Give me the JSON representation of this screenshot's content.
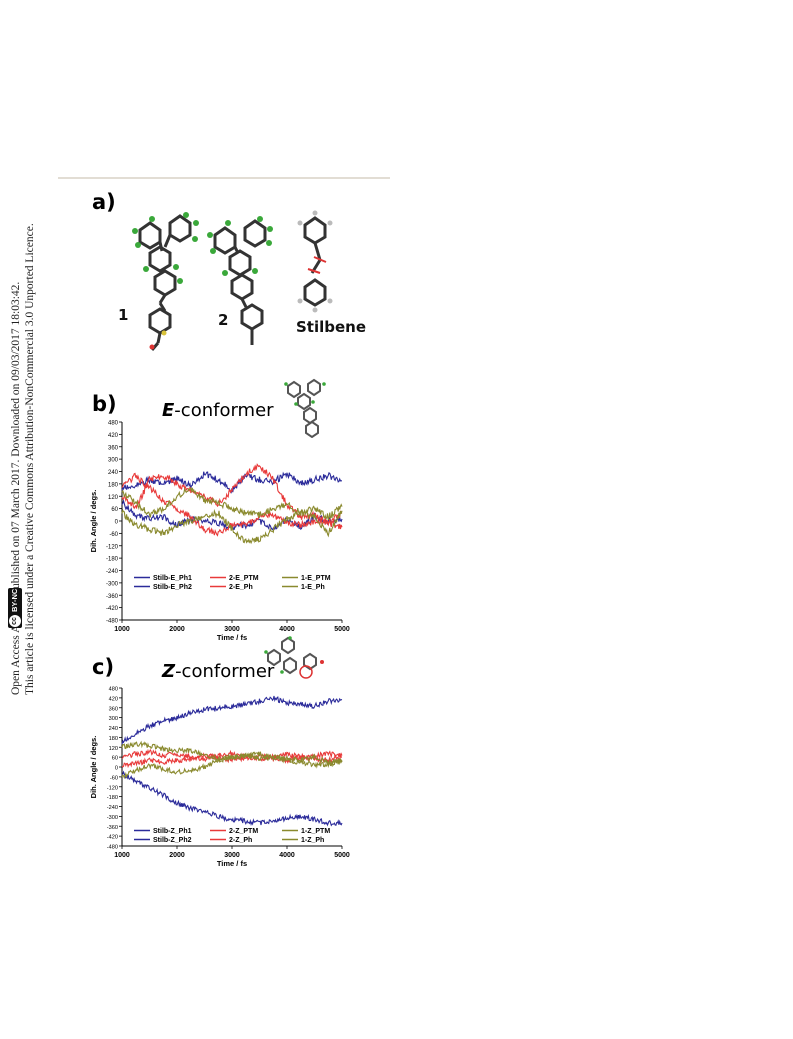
{
  "sidebar": {
    "line1": "Open Access Article. Published on 07 March 2017. Downloaded on 09/03/2017 18:03:42.",
    "line2": "This article is licensed under a Creative Commons Attribution-NonCommercial 3.0 Unported Licence.",
    "badge": {
      "cc": "cc",
      "text": "BY-NC"
    }
  },
  "panel_a": {
    "label": "a)",
    "molecules": [
      "1",
      "2",
      "Stilbene"
    ]
  },
  "panel_b": {
    "label": "b)",
    "title_prefix": "E",
    "title_suffix": "-conformer"
  },
  "panel_c": {
    "label": "c)",
    "title_prefix": "Z",
    "title_suffix": "-conformer"
  },
  "colors": {
    "blue": "#2b2b9a",
    "red": "#e83a3a",
    "olive": "#8a8a2e"
  },
  "chart_data": [
    {
      "type": "line",
      "xlabel": "Time / fs",
      "ylabel": "Dih. Angle / degs.",
      "xlim": [
        1000,
        5000
      ],
      "ylim": [
        -480,
        480
      ],
      "x_ticks": [
        1000,
        2000,
        3000,
        4000,
        5000
      ],
      "y_ticks": [
        480,
        420,
        360,
        300,
        240,
        180,
        120,
        60,
        0,
        -60,
        -120,
        -180,
        -240,
        -300,
        -360,
        -420,
        -480
      ],
      "legend": [
        "Stilb-E_Ph1",
        "2-E_PTM",
        "1-E_PTM",
        "Stilb-E_Ph2",
        "2-E_Ph",
        "1-E_Ph"
      ],
      "series": [
        {
          "name": "Stilb-E_Ph1",
          "color": "#2b2b9a",
          "x": [
            1000,
            1250,
            1500,
            1750,
            2000,
            2250,
            2500,
            2750,
            3000,
            3250,
            3500,
            3750,
            4000,
            4250,
            4500,
            4750,
            5000
          ],
          "y": [
            160,
            170,
            200,
            180,
            210,
            170,
            230,
            200,
            150,
            220,
            200,
            190,
            230,
            180,
            200,
            220,
            195
          ]
        },
        {
          "name": "Stilb-E_Ph2",
          "color": "#2b2b9a",
          "x": [
            1000,
            1250,
            1500,
            1750,
            2000,
            2250,
            2500,
            2750,
            3000,
            3250,
            3500,
            3750,
            4000,
            4250,
            4500,
            4750,
            5000
          ],
          "y": [
            90,
            30,
            10,
            20,
            -20,
            10,
            0,
            -10,
            -30,
            -20,
            0,
            -40,
            10,
            -30,
            20,
            0,
            10
          ]
        },
        {
          "name": "2-E_PTM",
          "color": "#e83a3a",
          "x": [
            1000,
            1250,
            1500,
            1750,
            2000,
            2250,
            2500,
            2750,
            3000,
            3250,
            3500,
            3750,
            4000,
            4250,
            4500,
            4750,
            5000
          ],
          "y": [
            170,
            220,
            160,
            100,
            60,
            20,
            -40,
            -60,
            -20,
            -20,
            20,
            30,
            -10,
            -20,
            0,
            -10,
            -30
          ]
        },
        {
          "name": "2-E_Ph",
          "color": "#e83a3a",
          "x": [
            1000,
            1250,
            1500,
            1750,
            2000,
            2250,
            2500,
            2750,
            3000,
            3250,
            3500,
            3750,
            4000,
            4250,
            4500,
            4750,
            5000
          ],
          "y": [
            120,
            60,
            200,
            220,
            180,
            150,
            120,
            80,
            150,
            230,
            270,
            200,
            80,
            20,
            30,
            -10,
            40
          ]
        },
        {
          "name": "1-E_PTM",
          "color": "#8a8a2e",
          "x": [
            1000,
            1250,
            1500,
            1750,
            2000,
            2250,
            2500,
            2750,
            3000,
            3250,
            3500,
            3750,
            4000,
            4250,
            4500,
            4750,
            5000
          ],
          "y": [
            40,
            -20,
            -40,
            -60,
            -20,
            0,
            20,
            40,
            -40,
            -100,
            -90,
            -40,
            10,
            40,
            20,
            -60,
            50
          ]
        },
        {
          "name": "1-E_Ph",
          "color": "#8a8a2e",
          "x": [
            1000,
            1250,
            1500,
            1750,
            2000,
            2250,
            2500,
            2750,
            3000,
            3250,
            3500,
            3750,
            4000,
            4250,
            4500,
            4750,
            5000
          ],
          "y": [
            140,
            90,
            30,
            60,
            120,
            160,
            100,
            90,
            60,
            40,
            30,
            60,
            80,
            40,
            60,
            20,
            70
          ]
        }
      ]
    },
    {
      "type": "line",
      "xlabel": "Time / fs",
      "ylabel": "Dih. Angle / degs.",
      "xlim": [
        1000,
        5000
      ],
      "ylim": [
        -480,
        480
      ],
      "x_ticks": [
        1000,
        2000,
        3000,
        4000,
        5000
      ],
      "y_ticks": [
        480,
        420,
        360,
        300,
        240,
        180,
        120,
        60,
        0,
        -60,
        -120,
        -180,
        -240,
        -300,
        -360,
        -420,
        -480
      ],
      "legend": [
        "Stilb-Z_Ph1",
        "2-Z_PTM",
        "1-Z_PTM",
        "Stilb-Z_Ph2",
        "2-Z_Ph",
        "1-Z_Ph"
      ],
      "series": [
        {
          "name": "Stilb-Z_Ph1",
          "color": "#2b2b9a",
          "x": [
            1000,
            1250,
            1500,
            1750,
            2000,
            2250,
            2500,
            2750,
            3000,
            3250,
            3500,
            3750,
            4000,
            4250,
            4500,
            4750,
            5000
          ],
          "y": [
            150,
            200,
            250,
            280,
            300,
            330,
            350,
            360,
            370,
            380,
            400,
            420,
            390,
            380,
            370,
            400,
            410
          ]
        },
        {
          "name": "Stilb-Z_Ph2",
          "color": "#2b2b9a",
          "x": [
            1000,
            1250,
            1500,
            1750,
            2000,
            2250,
            2500,
            2750,
            3000,
            3250,
            3500,
            3750,
            4000,
            4250,
            4500,
            4750,
            5000
          ],
          "y": [
            -40,
            -80,
            -130,
            -170,
            -220,
            -250,
            -270,
            -300,
            -320,
            -330,
            -340,
            -330,
            -310,
            -300,
            -320,
            -340,
            -340
          ]
        },
        {
          "name": "2-Z_PTM",
          "color": "#e83a3a",
          "x": [
            1000,
            1250,
            1500,
            1750,
            2000,
            2250,
            2500,
            2750,
            3000,
            3250,
            3500,
            3750,
            4000,
            4250,
            4500,
            4750,
            5000
          ],
          "y": [
            60,
            80,
            90,
            70,
            80,
            60,
            50,
            70,
            80,
            60,
            70,
            50,
            80,
            60,
            70,
            80,
            70
          ]
        },
        {
          "name": "2-Z_Ph",
          "color": "#e83a3a",
          "x": [
            1000,
            1250,
            1500,
            1750,
            2000,
            2250,
            2500,
            2750,
            3000,
            3250,
            3500,
            3750,
            4000,
            4250,
            4500,
            4750,
            5000
          ],
          "y": [
            10,
            20,
            40,
            30,
            40,
            50,
            70,
            60,
            40,
            60,
            50,
            60,
            40,
            60,
            50,
            40,
            60
          ]
        },
        {
          "name": "1-Z_PTM",
          "color": "#8a8a2e",
          "x": [
            1000,
            1250,
            1500,
            1750,
            2000,
            2250,
            2500,
            2750,
            3000,
            3250,
            3500,
            3750,
            4000,
            4250,
            4500,
            4750,
            5000
          ],
          "y": [
            120,
            140,
            130,
            110,
            100,
            100,
            70,
            50,
            60,
            70,
            50,
            60,
            50,
            40,
            60,
            30,
            40
          ]
        },
        {
          "name": "1-Z_Ph",
          "color": "#8a8a2e",
          "x": [
            1000,
            1250,
            1500,
            1750,
            2000,
            2250,
            2500,
            2750,
            3000,
            3250,
            3500,
            3750,
            4000,
            4250,
            4500,
            4750,
            5000
          ],
          "y": [
            -60,
            -20,
            10,
            -10,
            -30,
            -20,
            0,
            40,
            60,
            70,
            80,
            60,
            40,
            30,
            10,
            20,
            30
          ]
        }
      ]
    }
  ]
}
